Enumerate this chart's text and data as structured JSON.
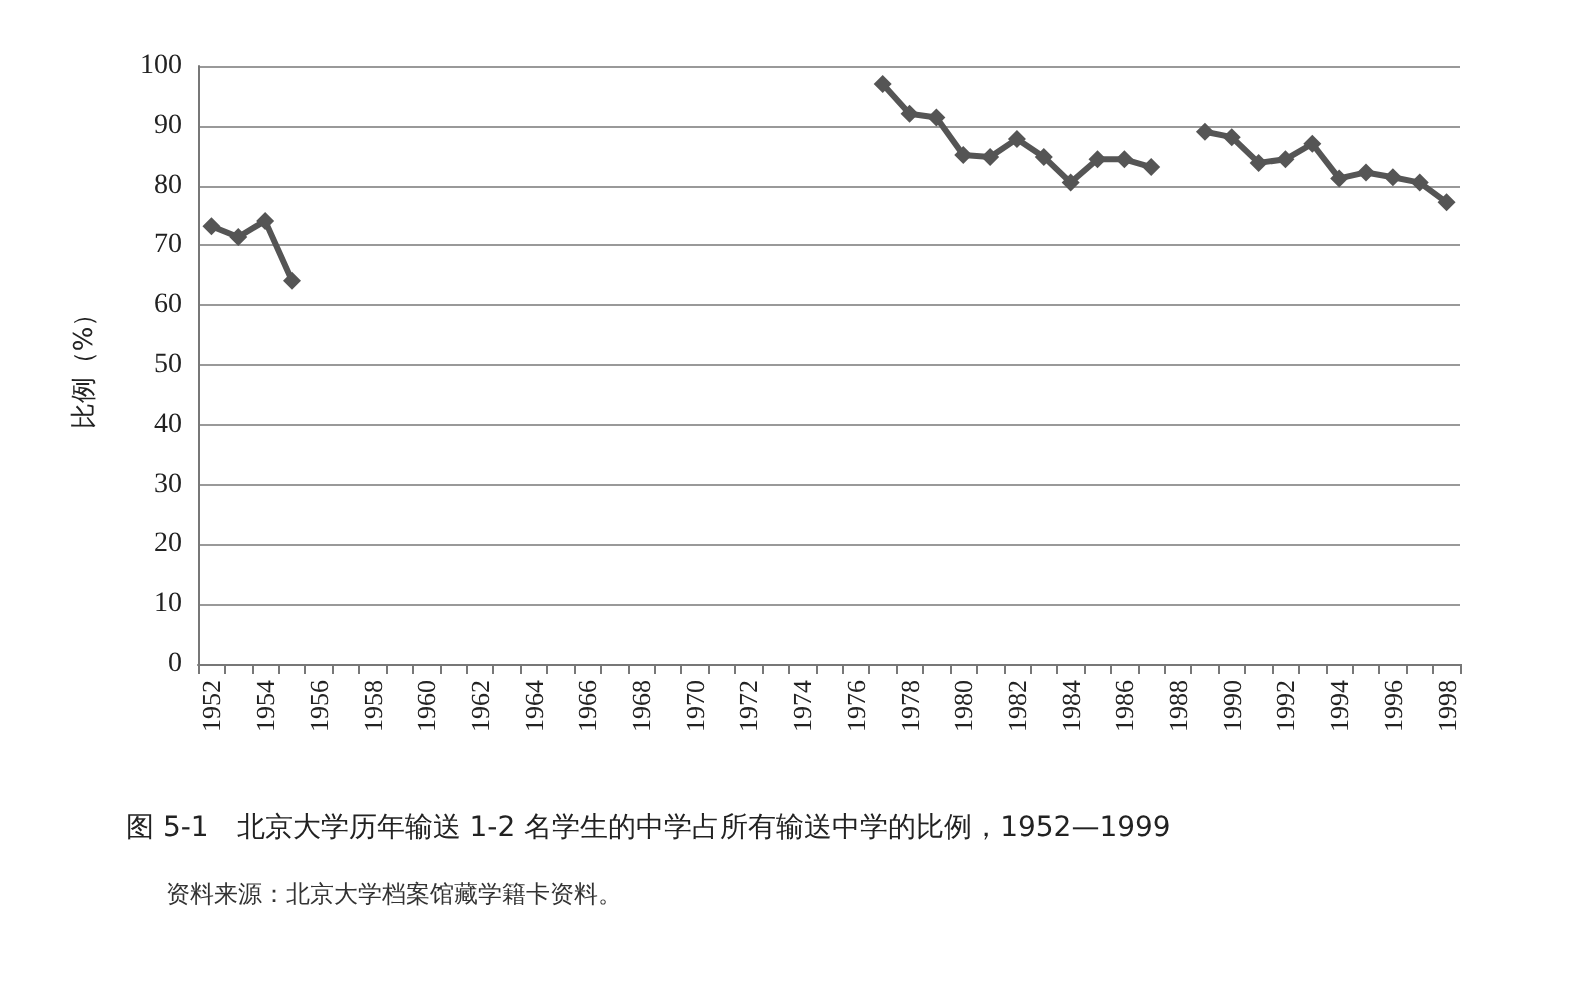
{
  "chart_data": {
    "type": "line",
    "title": "图 5-1　北京大学历年输送 1-2 名学生的中学占所有输送中学的比例，1952—1999",
    "ylabel": "比例（%）",
    "annotations": [
      "资料来源：北京大学档案馆藏学籍卡资料。"
    ],
    "categories": [
      "1952",
      null,
      "1954",
      null,
      "1956",
      null,
      "1958",
      null,
      "1960",
      null,
      "1962",
      null,
      "1964",
      null,
      "1966",
      null,
      "1968",
      null,
      "1970",
      null,
      "1972",
      null,
      "1974",
      null,
      "1976",
      null,
      "1978",
      null,
      "1980",
      null,
      "1982",
      null,
      "1984",
      null,
      "1986",
      null,
      "1988",
      null,
      "1990",
      null,
      "1992",
      null,
      "1994",
      null,
      "1996",
      null,
      "1998"
    ],
    "series": [
      {
        "color": "#555555",
        "values": [
          73.2,
          71.4,
          74.1,
          64.1,
          null,
          null,
          null,
          null,
          null,
          null,
          null,
          null,
          null,
          null,
          null,
          null,
          null,
          null,
          null,
          null,
          null,
          null,
          null,
          null,
          null,
          97.0,
          92.0,
          91.4,
          85.1,
          84.8,
          87.8,
          84.8,
          80.5,
          84.4,
          84.4,
          83.1,
          null,
          89.0,
          88.1,
          83.8,
          84.4,
          87.0,
          81.2,
          82.2,
          81.4,
          80.5,
          77.2
        ]
      }
    ],
    "ylim": [
      0,
      100
    ],
    "yticks": [
      0,
      10,
      20,
      30,
      40,
      50,
      60,
      70,
      80,
      90,
      100
    ],
    "grid": "y",
    "marker": "diamond",
    "line_style": "solid"
  }
}
